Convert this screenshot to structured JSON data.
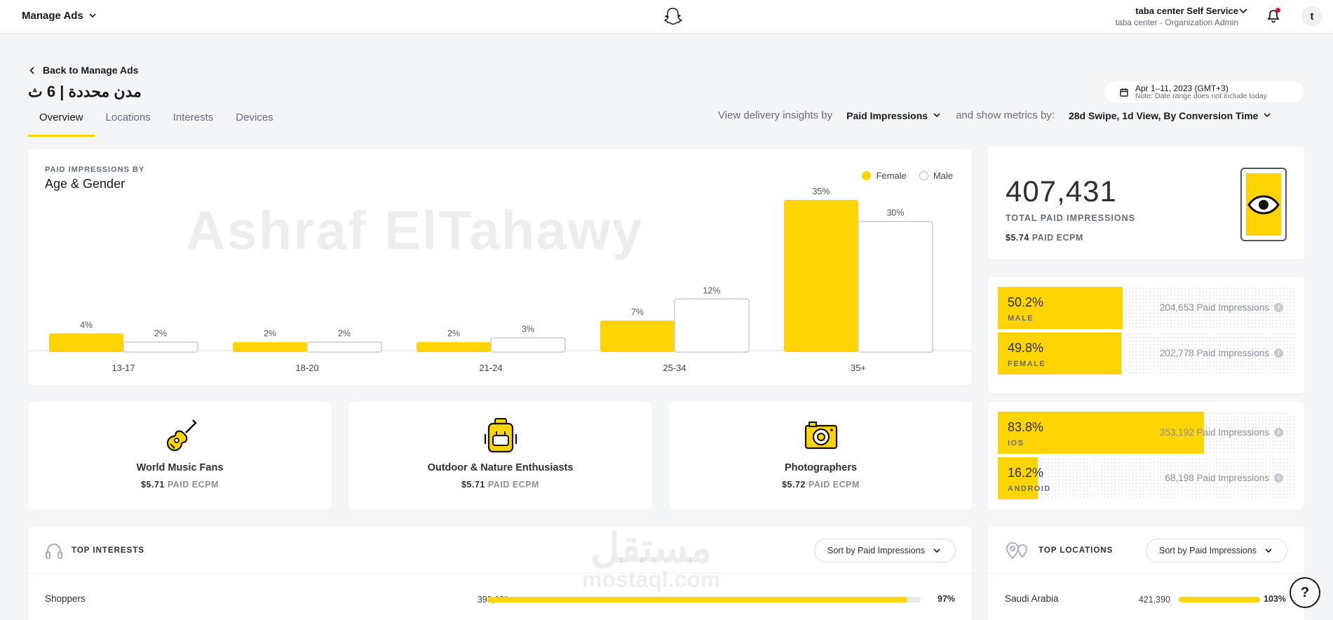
{
  "topbar": {
    "manage_ads": "Manage Ads",
    "account_org": "taba center Self Service",
    "account_role": "taba center - Organization Admin",
    "avatar_initial": "t"
  },
  "header": {
    "back": "Back to Manage Ads",
    "campaign_title": "مدن محددة | 6 ث",
    "tabs": [
      {
        "label": "Overview",
        "active": true
      },
      {
        "label": "Locations",
        "active": false
      },
      {
        "label": "Interests",
        "active": false
      },
      {
        "label": "Devices",
        "active": false
      }
    ],
    "date_range": "Apr 1–11, 2023 (GMT+3)",
    "date_note": "Note: Date range does not include today",
    "insights_prefix": "View delivery insights by",
    "insights_value": "Paid Impressions",
    "metrics_prefix": "and show metrics by:",
    "metrics_value": "28d Swipe, 1d View, By Conversion Time"
  },
  "chart_card": {
    "kicker": "PAID IMPRESSIONS BY",
    "title": "Age & Gender",
    "watermark": "Ashraf ElTahawy"
  },
  "chart_data": {
    "type": "bar",
    "categories": [
      "13-17",
      "18-20",
      "21-24",
      "25-34",
      "35+"
    ],
    "series": [
      {
        "name": "Female",
        "values": [
          4,
          2,
          2,
          7,
          35
        ],
        "labels": [
          "4%",
          "2%",
          "2%",
          "7%",
          "35%"
        ]
      },
      {
        "name": "Male",
        "values": [
          2,
          2,
          3,
          12,
          30
        ],
        "labels": [
          "2%",
          "2%",
          "3%",
          "12%",
          "30%"
        ]
      }
    ],
    "ylim": [
      0,
      35
    ],
    "legend": "top-right",
    "grid": false
  },
  "stats": {
    "total": "407,431",
    "total_label": "TOTAL PAID IMPRESSIONS",
    "ecpm_value": "$5.74",
    "ecpm_label": "PAID ECPM"
  },
  "gender_split": [
    {
      "pct": "50.2%",
      "label": "MALE",
      "count": "204,653 Paid Impressions",
      "fraction": 0.502
    },
    {
      "pct": "49.8%",
      "label": "FEMALE",
      "count": "202,778 Paid Impressions",
      "fraction": 0.498
    }
  ],
  "os_split": [
    {
      "pct": "83.8%",
      "label": "IOS",
      "count": "353,192 Paid Impressions",
      "fraction": 0.838
    },
    {
      "pct": "16.2%",
      "label": "ANDROID",
      "count": "68,198 Paid Impressions",
      "fraction": 0.162
    }
  ],
  "interests": [
    {
      "name": "World Music Fans",
      "ecpm_value": "$5.71",
      "ecpm_label": "PAID ECPM",
      "icon": "guitar-icon"
    },
    {
      "name": "Outdoor & Nature Enthusiasts",
      "ecpm_value": "$5.71",
      "ecpm_label": "PAID ECPM",
      "icon": "backpack-icon"
    },
    {
      "name": "Photographers",
      "ecpm_value": "$5.72",
      "ecpm_label": "PAID ECPM",
      "icon": "camera-icon"
    }
  ],
  "top_interests": {
    "title": "TOP INTERESTS",
    "sort_label": "Sort by Paid Impressions",
    "rows": [
      {
        "name": "Shoppers",
        "value": "393,621",
        "pct": "97%",
        "fraction": 0.97
      }
    ]
  },
  "top_locations": {
    "title": "TOP LOCATIONS",
    "sort_label": "Sort by Paid Impressions",
    "rows": [
      {
        "name": "Saudi Arabia",
        "value": "421,390",
        "pct": "103%",
        "fraction": 1.0
      }
    ]
  },
  "watermark2": {
    "main": "مستقل",
    "sub": "mostaql.com"
  },
  "help": "?",
  "colors": {
    "accent": "#ffd400",
    "male_bar": "#ffffff",
    "male_bar_border": "#c8ccd2"
  }
}
